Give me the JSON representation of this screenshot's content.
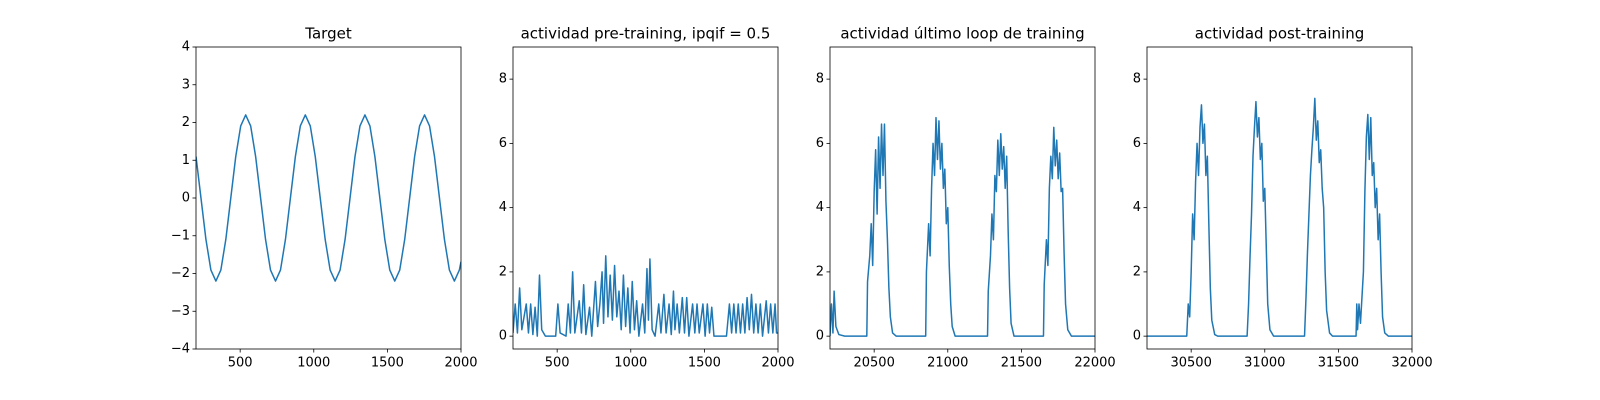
{
  "chart_data": [
    {
      "type": "line",
      "title": "Target",
      "color": "#1f77b4",
      "xlim": [
        200,
        2000
      ],
      "xticks": [
        500,
        1000,
        1500,
        2000
      ],
      "ylim": [
        -4,
        4
      ],
      "yticks": [
        {
          "value": -4,
          "label": "−4"
        },
        {
          "value": -3,
          "label": "−3"
        },
        {
          "value": -2,
          "label": "−2"
        },
        {
          "value": -1,
          "label": "−1"
        },
        0,
        1,
        2,
        3,
        4
      ],
      "x": [
        200,
        233.75,
        267.5,
        301.25,
        335,
        368.75,
        402.5,
        436.25,
        470,
        503.75,
        537.5,
        571.25,
        605,
        638.75,
        672.5,
        706.25,
        740,
        773.75,
        807.5,
        841.25,
        875,
        908.75,
        942.5,
        976.25,
        1010,
        1043.75,
        1077.5,
        1111.25,
        1145,
        1178.75,
        1212.5,
        1246.25,
        1280,
        1313.75,
        1347.5,
        1381.25,
        1415,
        1448.75,
        1482.5,
        1516.25,
        1550,
        1583.75,
        1617.5,
        1651.25,
        1685,
        1718.75,
        1752.5,
        1786.25,
        1820,
        1853.75,
        1887.5,
        1921.25,
        1955,
        1988.75,
        2000
      ],
      "values": [
        1.1,
        0,
        -1.1,
        -1.91,
        -2.2,
        -1.91,
        -1.1,
        0,
        1.1,
        1.91,
        2.2,
        1.91,
        1.1,
        0,
        -1.1,
        -1.91,
        -2.2,
        -1.91,
        -1.1,
        0,
        1.1,
        1.91,
        2.2,
        1.91,
        1.1,
        0,
        -1.1,
        -1.91,
        -2.2,
        -1.91,
        -1.1,
        0,
        1.1,
        1.91,
        2.2,
        1.91,
        1.1,
        0,
        -1.1,
        -1.91,
        -2.2,
        -1.91,
        -1.1,
        0,
        1.1,
        1.91,
        2.2,
        1.91,
        1.1,
        0,
        -1.1,
        -1.91,
        -2.2,
        -1.91,
        -1.69
      ]
    },
    {
      "type": "line",
      "title": "actividad pre-training, ipqif = 0.5",
      "color": "#1f77b4",
      "xlim": [
        200,
        2000
      ],
      "xticks": [
        500,
        1000,
        1500,
        2000
      ],
      "ylim": [
        -0.4,
        9.0
      ],
      "yticks": [
        0,
        2,
        4,
        6,
        8
      ],
      "x": [
        200,
        215,
        230,
        245,
        260,
        290,
        305,
        320,
        335,
        350,
        365,
        380,
        395,
        420,
        450,
        490,
        505,
        520,
        560,
        575,
        590,
        605,
        620,
        650,
        665,
        680,
        695,
        720,
        735,
        760,
        775,
        790,
        805,
        815,
        830,
        845,
        860,
        875,
        890,
        905,
        920,
        935,
        950,
        965,
        980,
        995,
        1010,
        1025,
        1040,
        1055,
        1080,
        1095,
        1110,
        1120,
        1130,
        1145,
        1165,
        1190,
        1205,
        1225,
        1240,
        1260,
        1275,
        1290,
        1300,
        1315,
        1330,
        1350,
        1365,
        1380,
        1395,
        1420,
        1435,
        1450,
        1465,
        1490,
        1505,
        1520,
        1535,
        1550,
        1565,
        1600,
        1650,
        1670,
        1685,
        1700,
        1715,
        1730,
        1745,
        1760,
        1775,
        1790,
        1805,
        1820,
        1835,
        1850,
        1865,
        1880,
        1895,
        1920,
        1935,
        1950,
        1965,
        1980,
        1990,
        2000
      ],
      "values": [
        0.1,
        1.0,
        0.1,
        1.5,
        0.2,
        1.0,
        0.1,
        1.0,
        0.05,
        0.9,
        0.0,
        1.9,
        0.2,
        0.0,
        0.0,
        0.0,
        1.0,
        0.1,
        0.0,
        1.0,
        0.1,
        2.0,
        0.1,
        1.1,
        0.1,
        1.6,
        0.05,
        0.9,
        0.0,
        1.7,
        0.3,
        1.0,
        2.0,
        0.4,
        2.5,
        0.6,
        1.9,
        0.5,
        2.2,
        0.6,
        1.4,
        0.2,
        1.9,
        0.3,
        1.5,
        0.1,
        1.7,
        0.2,
        1.1,
        0.0,
        1.0,
        0.1,
        2.1,
        0.5,
        2.4,
        0.2,
        0.0,
        1.0,
        0.1,
        1.3,
        0.1,
        1.0,
        0.05,
        1.4,
        0.2,
        1.0,
        0.1,
        1.2,
        0.1,
        1.2,
        0.0,
        1.0,
        0.1,
        1.0,
        0.1,
        1.0,
        0.0,
        1.0,
        0.1,
        0.9,
        0.0,
        0.0,
        0.0,
        1.0,
        0.1,
        1.0,
        0.1,
        1.0,
        0.1,
        1.0,
        0.1,
        1.2,
        0.2,
        1.3,
        0.1,
        1.0,
        0.1,
        1.0,
        0.0,
        1.1,
        0.1,
        1.0,
        0.1,
        1.0,
        0.1,
        0.1
      ]
    },
    {
      "type": "line",
      "title": "actividad último loop de training",
      "color": "#1f77b4",
      "xlim": [
        20200,
        22000
      ],
      "xticks": [
        20500,
        21000,
        21500,
        22000
      ],
      "ylim": [
        -0.4,
        9.0
      ],
      "yticks": [
        0,
        2,
        4,
        6,
        8
      ],
      "x": [
        20200,
        20210,
        20220,
        20228,
        20240,
        20260,
        20300,
        20450,
        20455,
        20470,
        20480,
        20490,
        20500,
        20510,
        20520,
        20530,
        20540,
        20550,
        20560,
        20570,
        20580,
        20590,
        20600,
        20610,
        20625,
        20650,
        20850,
        20855,
        20870,
        20880,
        20890,
        20900,
        20910,
        20920,
        20930,
        20940,
        20950,
        20960,
        20970,
        20980,
        20990,
        21000,
        21010,
        21020,
        21030,
        21050,
        21270,
        21275,
        21290,
        21300,
        21310,
        21320,
        21330,
        21340,
        21350,
        21360,
        21370,
        21380,
        21390,
        21400,
        21410,
        21420,
        21430,
        21450,
        21650,
        21655,
        21670,
        21680,
        21690,
        21700,
        21710,
        21720,
        21730,
        21740,
        21750,
        21760,
        21770,
        21780,
        21790,
        21800,
        21815,
        21840,
        22000
      ],
      "values": [
        0.0,
        1.0,
        0.1,
        1.4,
        0.3,
        0.05,
        0.0,
        0.0,
        1.7,
        2.5,
        3.5,
        2.2,
        4.5,
        5.8,
        3.8,
        6.2,
        4.6,
        6.6,
        5.0,
        6.6,
        4.2,
        3.0,
        1.5,
        0.6,
        0.1,
        0.0,
        0.0,
        2.0,
        3.5,
        2.5,
        4.6,
        6.0,
        5.0,
        6.8,
        5.5,
        6.7,
        5.2,
        6.0,
        4.6,
        5.2,
        3.5,
        4.0,
        2.2,
        1.0,
        0.3,
        0.0,
        0.0,
        1.4,
        2.5,
        3.8,
        3.0,
        5.0,
        4.5,
        6.1,
        5.0,
        6.3,
        5.2,
        5.9,
        4.6,
        5.6,
        3.3,
        1.5,
        0.4,
        0.0,
        0.0,
        1.6,
        3.0,
        2.2,
        4.6,
        5.6,
        4.9,
        6.5,
        5.3,
        6.1,
        4.9,
        5.7,
        4.5,
        4.6,
        2.6,
        1.0,
        0.2,
        0.0,
        0.0
      ]
    },
    {
      "type": "line",
      "title": "actividad post-training",
      "color": "#1f77b4",
      "xlim": [
        30200,
        32000
      ],
      "xticks": [
        30500,
        31000,
        31500,
        32000
      ],
      "ylim": [
        -0.4,
        9.0
      ],
      "yticks": [
        0,
        2,
        4,
        6,
        8
      ],
      "x": [
        30200,
        30450,
        30470,
        30480,
        30490,
        30500,
        30510,
        30520,
        30530,
        30540,
        30550,
        30560,
        30570,
        30580,
        30590,
        30600,
        30610,
        30620,
        30630,
        30640,
        30660,
        30680,
        30880,
        30890,
        30900,
        30910,
        30920,
        30930,
        30940,
        30950,
        30960,
        30970,
        30980,
        30990,
        31000,
        31010,
        31020,
        31035,
        31060,
        31270,
        31280,
        31290,
        31300,
        31310,
        31320,
        31330,
        31340,
        31350,
        31360,
        31370,
        31380,
        31390,
        31400,
        31410,
        31420,
        31440,
        31460,
        31620,
        31625,
        31630,
        31640,
        31650,
        31670,
        31680,
        31690,
        31700,
        31710,
        31720,
        31730,
        31740,
        31750,
        31760,
        31770,
        31780,
        31790,
        31800,
        31815,
        31840,
        32000
      ],
      "values": [
        0.0,
        0.0,
        0.0,
        1.0,
        0.6,
        2.0,
        3.8,
        3.0,
        4.8,
        6.0,
        5.0,
        6.5,
        7.2,
        6.0,
        6.6,
        5.0,
        5.6,
        3.5,
        1.5,
        0.5,
        0.05,
        0.0,
        0.0,
        1.0,
        2.5,
        3.8,
        5.6,
        6.5,
        7.3,
        6.2,
        6.8,
        5.5,
        6.0,
        4.2,
        4.6,
        2.8,
        1.0,
        0.2,
        0.0,
        0.0,
        1.2,
        2.6,
        3.8,
        5.0,
        5.8,
        6.5,
        7.4,
        6.1,
        6.7,
        5.4,
        5.8,
        4.6,
        4.0,
        2.0,
        0.8,
        0.1,
        0.0,
        0.0,
        1.0,
        0.2,
        1.0,
        0.4,
        2.0,
        4.5,
        6.2,
        6.9,
        5.5,
        6.8,
        5.0,
        5.4,
        4.0,
        4.6,
        3.0,
        3.8,
        2.0,
        0.6,
        0.1,
        0.0,
        0.0
      ]
    }
  ]
}
